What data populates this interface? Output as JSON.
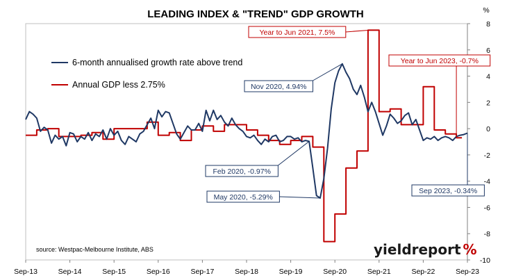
{
  "chart_data": {
    "type": "line",
    "title": "LEADING INDEX & \"TREND\" GDP GROWTH",
    "y_unit_label": "%",
    "ylim": [
      -10,
      8
    ],
    "yticks": [
      8,
      6,
      4,
      2,
      0,
      -2,
      -4,
      -6,
      -8,
      -10
    ],
    "x_range": [
      "2013-09",
      "2023-09"
    ],
    "x_tick_labels": [
      "Sep-13",
      "Sep-14",
      "Sep-15",
      "Sep-16",
      "Sep-17",
      "Sep-18",
      "Sep-19",
      "Sep-20",
      "Sep-21",
      "Sep-22",
      "Sep-23"
    ],
    "grid": false,
    "legend_position": "top-left",
    "source": "source: Westpac-Melbourne Institute, ABS",
    "brand": {
      "text": "yieldreport",
      "suffix": "%"
    },
    "series": [
      {
        "name": "6-month annualised growth rate above trend",
        "color": "#1f3864",
        "points": [
          [
            "2013-09",
            0.7
          ],
          [
            "2013-10",
            1.3
          ],
          [
            "2013-11",
            1.1
          ],
          [
            "2013-12",
            0.8
          ],
          [
            "2014-01",
            -0.2
          ],
          [
            "2014-02",
            0.1
          ],
          [
            "2014-03",
            -0.1
          ],
          [
            "2014-04",
            -1.1
          ],
          [
            "2014-05",
            -0.5
          ],
          [
            "2014-06",
            -0.8
          ],
          [
            "2014-07",
            -0.6
          ],
          [
            "2014-08",
            -1.3
          ],
          [
            "2014-09",
            -0.3
          ],
          [
            "2014-10",
            -0.4
          ],
          [
            "2014-11",
            -1.0
          ],
          [
            "2014-12",
            -0.6
          ],
          [
            "2015-01",
            -0.8
          ],
          [
            "2015-02",
            -0.3
          ],
          [
            "2015-03",
            -0.9
          ],
          [
            "2015-04",
            -0.4
          ],
          [
            "2015-05",
            -0.6
          ],
          [
            "2015-06",
            -0.1
          ],
          [
            "2015-07",
            -0.8
          ],
          [
            "2015-08",
            0.0
          ],
          [
            "2015-09",
            -0.5
          ],
          [
            "2015-10",
            -0.2
          ],
          [
            "2015-11",
            -0.9
          ],
          [
            "2015-12",
            -1.2
          ],
          [
            "2016-01",
            -0.6
          ],
          [
            "2016-02",
            -0.8
          ],
          [
            "2016-03",
            -1.0
          ],
          [
            "2016-04",
            -0.4
          ],
          [
            "2016-05",
            -0.2
          ],
          [
            "2016-06",
            0.3
          ],
          [
            "2016-07",
            0.8
          ],
          [
            "2016-08",
            0.0
          ],
          [
            "2016-09",
            1.4
          ],
          [
            "2016-10",
            0.9
          ],
          [
            "2016-11",
            1.3
          ],
          [
            "2016-12",
            1.2
          ],
          [
            "2017-01",
            0.4
          ],
          [
            "2017-02",
            -0.4
          ],
          [
            "2017-03",
            -0.8
          ],
          [
            "2017-04",
            -0.3
          ],
          [
            "2017-05",
            0.2
          ],
          [
            "2017-06",
            -0.1
          ],
          [
            "2017-07",
            -0.1
          ],
          [
            "2017-08",
            0.4
          ],
          [
            "2017-09",
            -0.2
          ],
          [
            "2017-10",
            1.4
          ],
          [
            "2017-11",
            0.6
          ],
          [
            "2017-12",
            1.4
          ],
          [
            "2018-01",
            0.7
          ],
          [
            "2018-02",
            1.0
          ],
          [
            "2018-03",
            0.5
          ],
          [
            "2018-04",
            0.2
          ],
          [
            "2018-05",
            0.8
          ],
          [
            "2018-06",
            0.3
          ],
          [
            "2018-07",
            0.0
          ],
          [
            "2018-08",
            -0.2
          ],
          [
            "2018-09",
            -0.6
          ],
          [
            "2018-10",
            -0.7
          ],
          [
            "2018-11",
            -0.5
          ],
          [
            "2018-12",
            -0.9
          ],
          [
            "2019-01",
            -1.2
          ],
          [
            "2019-02",
            -0.8
          ],
          [
            "2019-03",
            -1.0
          ],
          [
            "2019-04",
            -0.6
          ],
          [
            "2019-05",
            -0.5
          ],
          [
            "2019-06",
            -1.0
          ],
          [
            "2019-07",
            -0.9
          ],
          [
            "2019-08",
            -0.6
          ],
          [
            "2019-09",
            -0.6
          ],
          [
            "2019-10",
            -0.8
          ],
          [
            "2019-11",
            -0.7
          ],
          [
            "2019-12",
            -1.0
          ],
          [
            "2020-01",
            -0.9
          ],
          [
            "2020-02",
            -0.97
          ],
          [
            "2020-03",
            -3.0
          ],
          [
            "2020-04",
            -5.1
          ],
          [
            "2020-05",
            -5.29
          ],
          [
            "2020-06",
            -3.8
          ],
          [
            "2020-07",
            -1.5
          ],
          [
            "2020-08",
            1.5
          ],
          [
            "2020-09",
            3.5
          ],
          [
            "2020-10",
            4.4
          ],
          [
            "2020-11",
            4.94
          ],
          [
            "2020-12",
            4.3
          ],
          [
            "2021-01",
            3.8
          ],
          [
            "2021-02",
            3.0
          ],
          [
            "2021-03",
            2.6
          ],
          [
            "2021-04",
            3.3
          ],
          [
            "2021-05",
            2.4
          ],
          [
            "2021-06",
            1.3
          ],
          [
            "2021-07",
            2.0
          ],
          [
            "2021-08",
            1.3
          ],
          [
            "2021-09",
            0.4
          ],
          [
            "2021-10",
            -0.5
          ],
          [
            "2021-11",
            0.2
          ],
          [
            "2021-12",
            1.1
          ],
          [
            "2022-01",
            0.8
          ],
          [
            "2022-02",
            0.4
          ],
          [
            "2022-03",
            0.6
          ],
          [
            "2022-04",
            1.0
          ],
          [
            "2022-05",
            1.2
          ],
          [
            "2022-06",
            0.3
          ],
          [
            "2022-07",
            0.7
          ],
          [
            "2022-08",
            -0.1
          ],
          [
            "2022-09",
            -0.9
          ],
          [
            "2022-10",
            -0.7
          ],
          [
            "2022-11",
            -0.8
          ],
          [
            "2022-12",
            -0.6
          ],
          [
            "2023-01",
            -0.9
          ],
          [
            "2023-02",
            -0.7
          ],
          [
            "2023-03",
            -0.6
          ],
          [
            "2023-04",
            -0.7
          ],
          [
            "2023-05",
            -0.9
          ],
          [
            "2023-06",
            -0.6
          ],
          [
            "2023-07",
            -0.5
          ],
          [
            "2023-08",
            -0.45
          ],
          [
            "2023-09",
            -0.34
          ]
        ]
      },
      {
        "name": "Annual GDP less 2.75%",
        "color": "#c00000",
        "points": [
          [
            "2013-09",
            -0.5
          ],
          [
            "2013-12",
            -0.1
          ],
          [
            "2014-03",
            0.0
          ],
          [
            "2014-06",
            -0.6
          ],
          [
            "2014-09",
            -0.6
          ],
          [
            "2014-12",
            -0.5
          ],
          [
            "2015-03",
            -0.3
          ],
          [
            "2015-06",
            -0.8
          ],
          [
            "2015-09",
            0.0
          ],
          [
            "2015-12",
            0.0
          ],
          [
            "2016-03",
            0.0
          ],
          [
            "2016-06",
            0.5
          ],
          [
            "2016-09",
            -0.5
          ],
          [
            "2016-12",
            -0.3
          ],
          [
            "2017-03",
            -0.9
          ],
          [
            "2017-06",
            -0.1
          ],
          [
            "2017-09",
            0.2
          ],
          [
            "2017-12",
            -0.2
          ],
          [
            "2018-03",
            0.3
          ],
          [
            "2018-06",
            0.3
          ],
          [
            "2018-09",
            -0.1
          ],
          [
            "2018-12",
            -0.5
          ],
          [
            "2019-03",
            -0.9
          ],
          [
            "2019-06",
            -1.2
          ],
          [
            "2019-09",
            -0.9
          ],
          [
            "2019-12",
            -0.6
          ],
          [
            "2020-03",
            -1.4
          ],
          [
            "2020-06",
            -8.6
          ],
          [
            "2020-09",
            -6.5
          ],
          [
            "2020-12",
            -3.0
          ],
          [
            "2021-03",
            -1.7
          ],
          [
            "2021-06",
            7.5
          ],
          [
            "2021-09",
            1.3
          ],
          [
            "2021-12",
            1.5
          ],
          [
            "2022-03",
            0.3
          ],
          [
            "2022-06",
            0.3
          ],
          [
            "2022-09",
            3.2
          ],
          [
            "2022-12",
            -0.1
          ],
          [
            "2023-03",
            -0.4
          ],
          [
            "2023-06",
            -0.7
          ]
        ]
      }
    ],
    "annotations": [
      {
        "text": "Year to Jun 2021, 7.5%",
        "series": 1,
        "at": [
          "2021-06",
          7.5
        ]
      },
      {
        "text": "Year to Jun 2023, -0.7%",
        "series": 1,
        "at": [
          "2023-06",
          -0.7
        ]
      },
      {
        "text": "Nov 2020, 4.94%",
        "series": 0,
        "at": [
          "2020-11",
          4.94
        ]
      },
      {
        "text": "Feb 2020, -0.97%",
        "series": 0,
        "at": [
          "2020-02",
          -0.97
        ]
      },
      {
        "text": "May 2020, -5.29%",
        "series": 0,
        "at": [
          "2020-05",
          -5.29
        ]
      },
      {
        "text": "Sep 2023, -0.34%",
        "series": 0,
        "at": [
          "2023-09",
          -0.34
        ]
      }
    ]
  }
}
